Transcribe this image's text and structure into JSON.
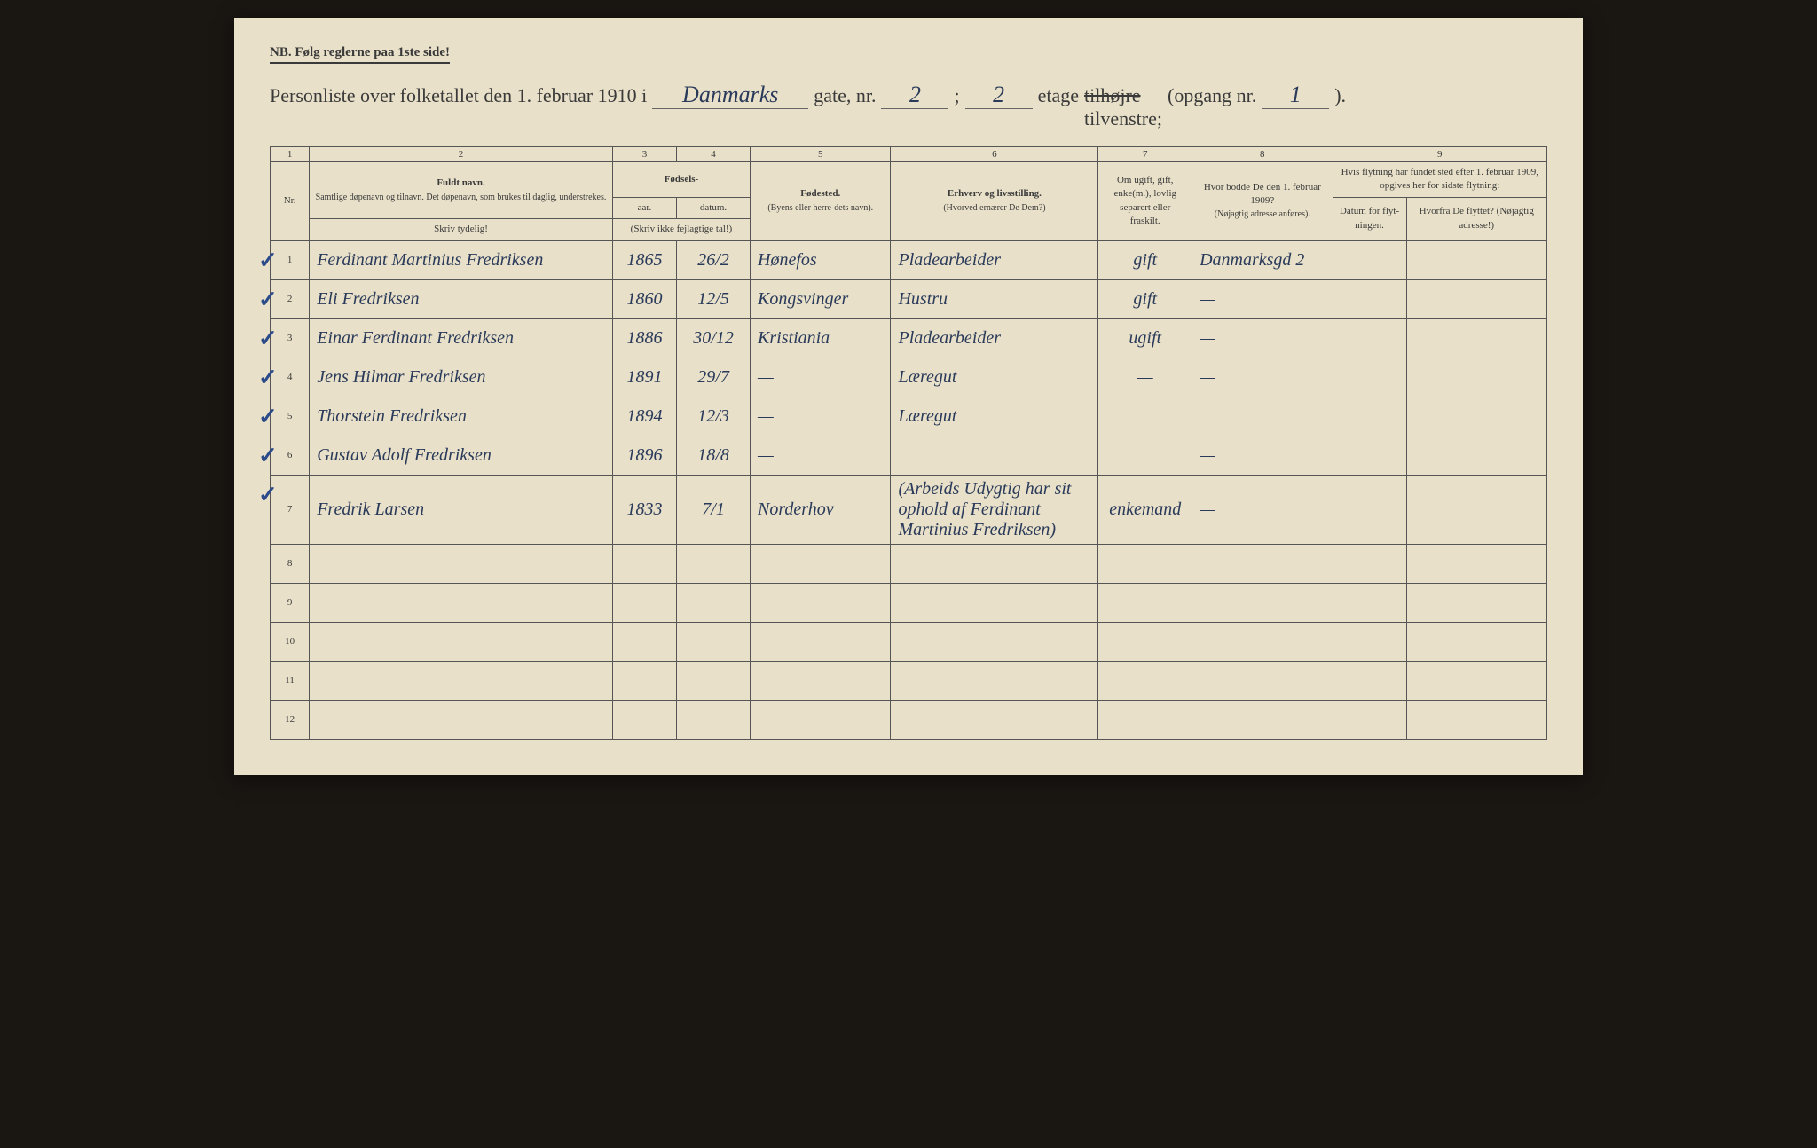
{
  "type": "document-form-table",
  "background_color": "#e8e0c8",
  "ink_color": "#2a3a5a",
  "print_color": "#3a3a3a",
  "nb_text": "NB.   Følg reglerne paa 1ste side!",
  "title": {
    "prefix": "Personliste over folketallet den 1. februar 1910 i",
    "street": "Danmarks",
    "gate_label": "gate, nr.",
    "house_nr": "2",
    "sep": ";",
    "floor_nr": "2",
    "etage_label": "etage",
    "side_strike": "tilhøjre",
    "side": "tilvenstre;",
    "opgang_label": "(opgang nr.",
    "opgang_nr": "1",
    "close": ")."
  },
  "col_numbers": [
    "1",
    "2",
    "3",
    "4",
    "5",
    "6",
    "7",
    "8",
    "9"
  ],
  "headers": {
    "nr": "Nr.",
    "name_title": "Fuldt navn.",
    "name_sub": "Samtlige døpenavn og tilnavn. Det døpenavn, som brukes til daglig, understrekes.",
    "name_hint": "Skriv tydelig!",
    "birth_title": "Fødsels-",
    "year": "aar.",
    "date": "datum.",
    "birth_hint": "(Skriv ikke fejlagtige tal!)",
    "place_title": "Fødested.",
    "place_sub": "(Byens eller herre-dets navn).",
    "occ_title": "Erhverv og livsstilling.",
    "occ_sub": "(Hvorved ernærer De Dem?)",
    "marital": "Om ugift, gift, enke(m.), lovlig separert eller fraskilt.",
    "prev_title": "Hvor bodde De den 1. februar 1909?",
    "prev_sub": "(Nøjagtig adresse anføres).",
    "move_title": "Hvis flytning har fundet sted efter 1. februar 1909, opgives her for sidste flytning:",
    "move_date": "Datum for flyt-ningen.",
    "move_from": "Hvorfra De flyttet? (Nøjagtig adresse!)"
  },
  "rows": [
    {
      "n": "1",
      "name": "Ferdinant Martinius Fredriksen",
      "year": "1865",
      "date": "26/2",
      "place": "Hønefos",
      "occ": "Pladearbeider",
      "marital": "gift",
      "prev": "Danmarksgd 2",
      "mdate": "",
      "mfrom": ""
    },
    {
      "n": "2",
      "name": "Eli Fredriksen",
      "year": "1860",
      "date": "12/5",
      "place": "Kongsvinger",
      "occ": "Hustru",
      "marital": "gift",
      "prev": "—",
      "mdate": "",
      "mfrom": ""
    },
    {
      "n": "3",
      "name": "Einar Ferdinant Fredriksen",
      "year": "1886",
      "date": "30/12",
      "place": "Kristiania",
      "occ": "Pladearbeider",
      "marital": "ugift",
      "prev": "—",
      "mdate": "",
      "mfrom": ""
    },
    {
      "n": "4",
      "name": "Jens Hilmar Fredriksen",
      "year": "1891",
      "date": "29/7",
      "place": "—",
      "occ": "Læregut",
      "marital": "—",
      "prev": "—",
      "mdate": "",
      "mfrom": ""
    },
    {
      "n": "5",
      "name": "Thorstein Fredriksen",
      "year": "1894",
      "date": "12/3",
      "place": "—",
      "occ": "Læregut",
      "marital": "",
      "prev": "",
      "mdate": "",
      "mfrom": ""
    },
    {
      "n": "6",
      "name": "Gustav Adolf Fredriksen",
      "year": "1896",
      "date": "18/8",
      "place": "—",
      "occ": "",
      "marital": "",
      "prev": "—",
      "mdate": "",
      "mfrom": ""
    },
    {
      "n": "7",
      "name": "Fredrik Larsen",
      "year": "1833",
      "date": "7/1",
      "place": "Norderhov",
      "occ": "(Arbeids Udygtig har sit ophold af Ferdinant Martinius Fredriksen)",
      "marital": "enkemand",
      "prev": "—",
      "mdate": "",
      "mfrom": ""
    },
    {
      "n": "8",
      "name": "",
      "year": "",
      "date": "",
      "place": "",
      "occ": "",
      "marital": "",
      "prev": "",
      "mdate": "",
      "mfrom": ""
    },
    {
      "n": "9",
      "name": "",
      "year": "",
      "date": "",
      "place": "",
      "occ": "",
      "marital": "",
      "prev": "",
      "mdate": "",
      "mfrom": ""
    },
    {
      "n": "10",
      "name": "",
      "year": "",
      "date": "",
      "place": "",
      "occ": "",
      "marital": "",
      "prev": "",
      "mdate": "",
      "mfrom": ""
    },
    {
      "n": "11",
      "name": "",
      "year": "",
      "date": "",
      "place": "",
      "occ": "",
      "marital": "",
      "prev": "",
      "mdate": "",
      "mfrom": ""
    },
    {
      "n": "12",
      "name": "",
      "year": "",
      "date": "",
      "place": "",
      "occ": "",
      "marital": "",
      "prev": "",
      "mdate": "",
      "mfrom": ""
    }
  ],
  "checked_rows": [
    1,
    2,
    3,
    4,
    5,
    6,
    7
  ]
}
